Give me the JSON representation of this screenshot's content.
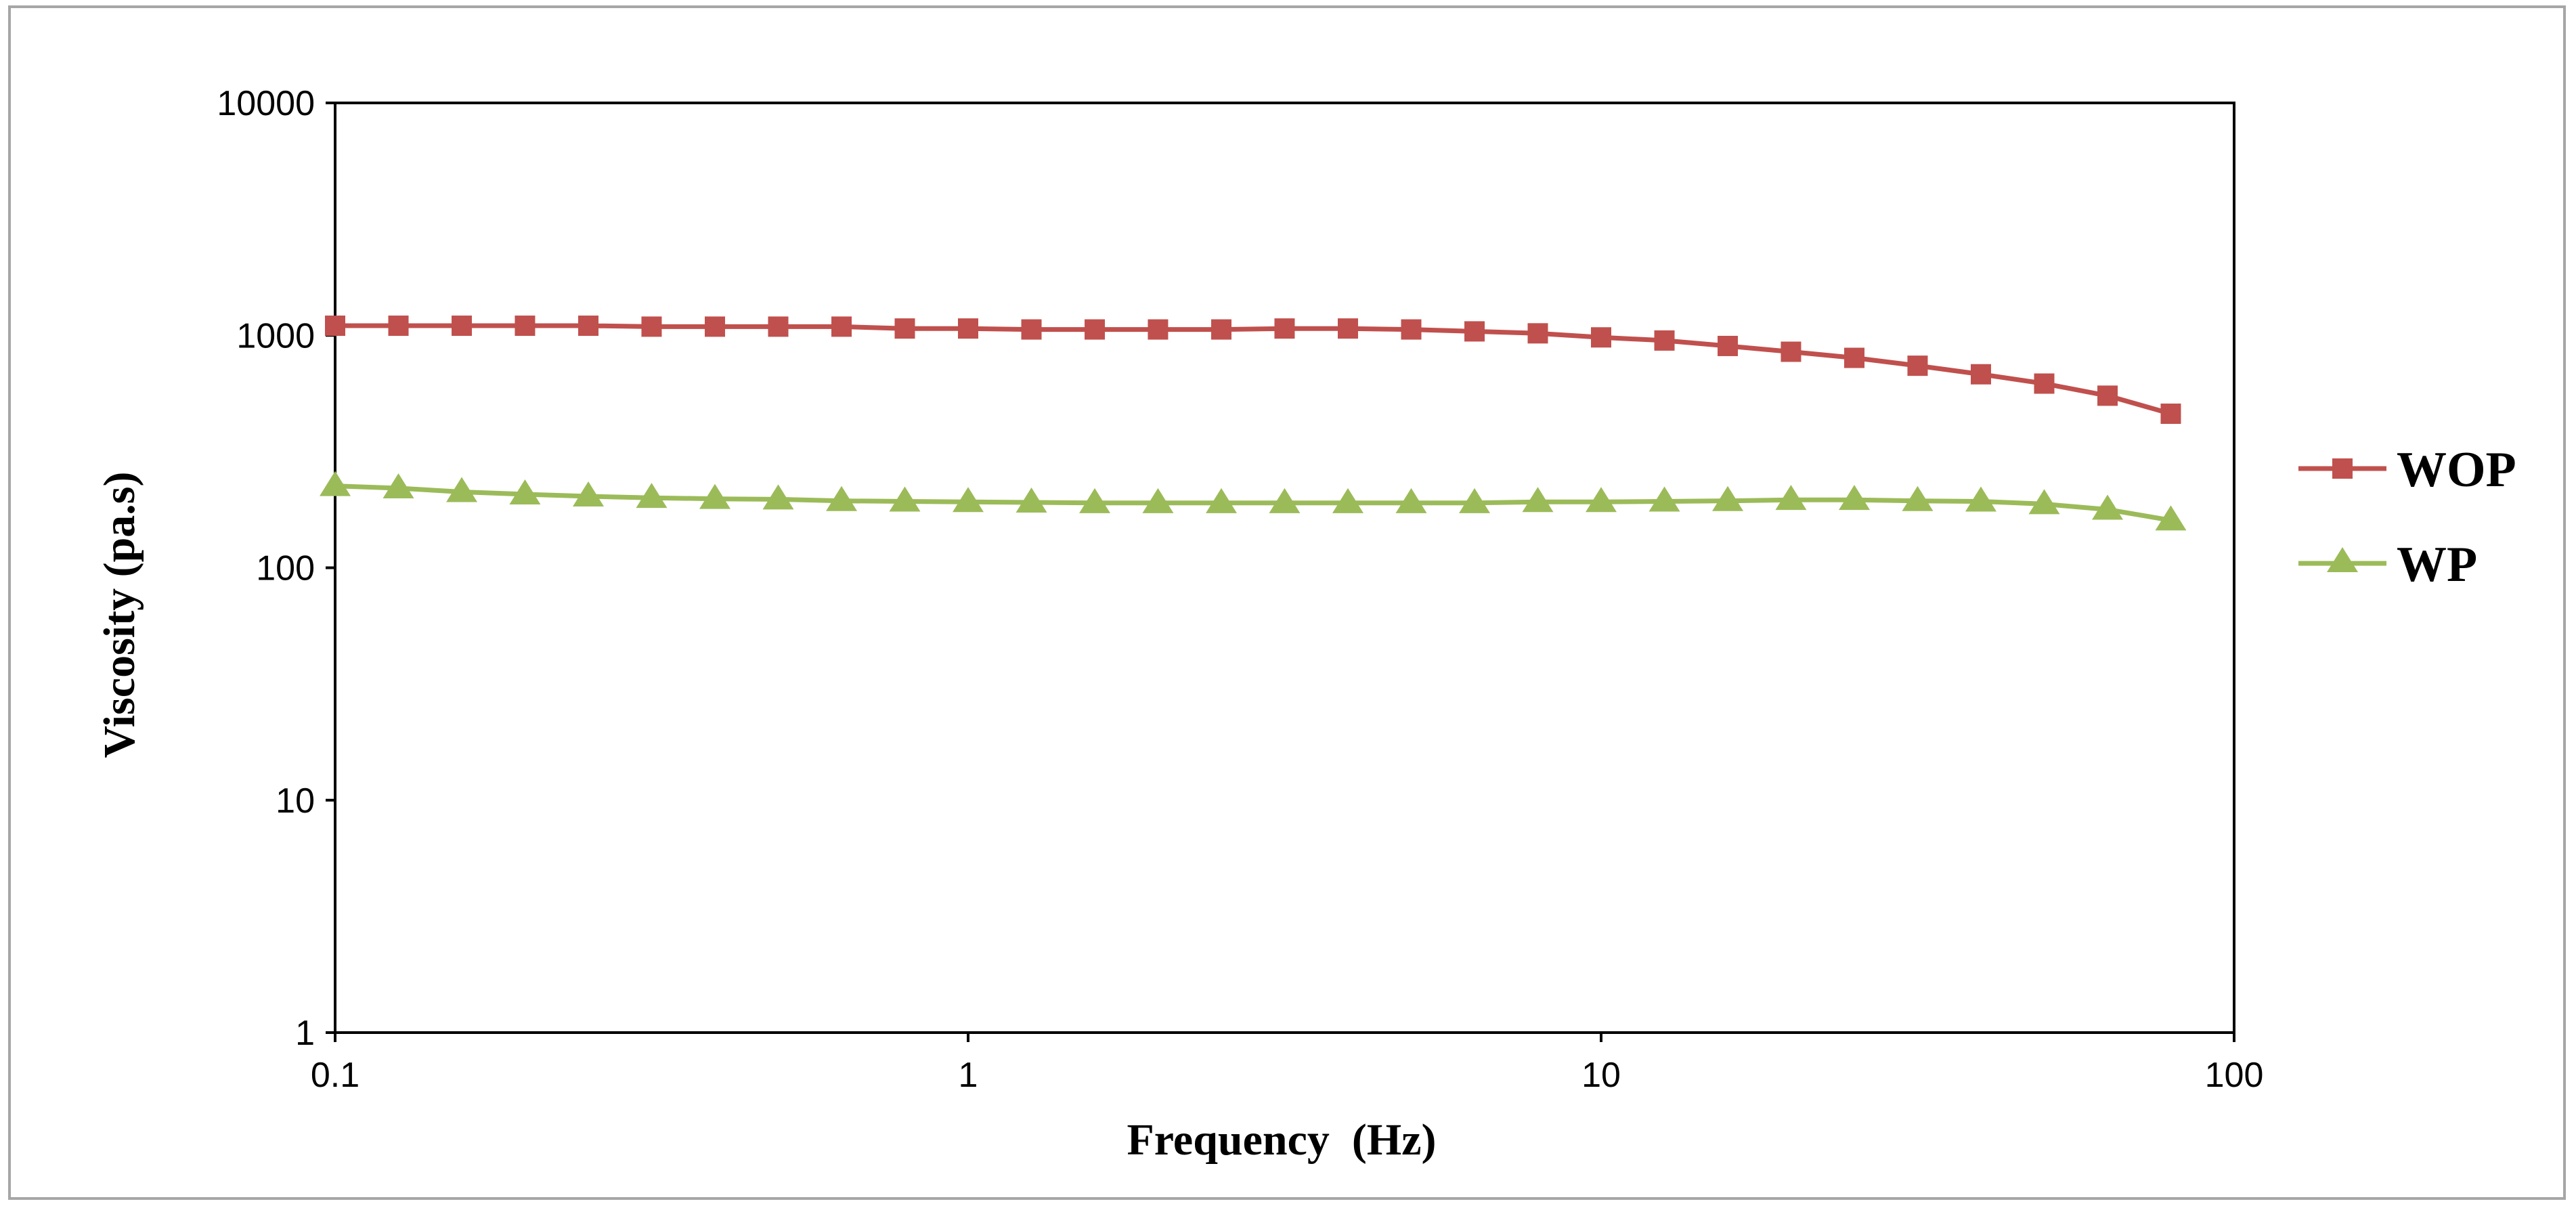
{
  "chart_data": {
    "type": "line",
    "title": "",
    "xlabel": "Frequency  (Hz)",
    "ylabel": "Viscosity (pa.s)",
    "xscale": "log",
    "yscale": "log",
    "xlim": [
      0.1,
      100
    ],
    "ylim": [
      1,
      10000
    ],
    "xticks": [
      "0.1",
      "1",
      "10",
      "100"
    ],
    "yticks": [
      "1",
      "10",
      "100",
      "1000",
      "10000"
    ],
    "grid": false,
    "legend_position": "right",
    "x": [
      0.1,
      0.1259,
      0.1585,
      0.1995,
      0.2512,
      0.3162,
      0.3981,
      0.5012,
      0.631,
      0.7943,
      1,
      1.259,
      1.585,
      1.995,
      2.512,
      3.162,
      3.981,
      5.012,
      6.31,
      7.943,
      10,
      12.59,
      15.85,
      19.95,
      25.12,
      31.62,
      39.81,
      50.12,
      63.1,
      79.43
    ],
    "series": [
      {
        "name": "WOP",
        "color": "#c0504d",
        "marker": "square",
        "values": [
          1100,
          1100,
          1100,
          1100,
          1100,
          1090,
          1090,
          1090,
          1090,
          1070,
          1070,
          1060,
          1060,
          1060,
          1060,
          1070,
          1070,
          1060,
          1040,
          1020,
          980,
          950,
          900,
          850,
          800,
          740,
          680,
          620,
          550,
          460
        ]
      },
      {
        "name": "WP",
        "color": "#9bbb59",
        "marker": "triangle",
        "values": [
          225,
          220,
          212,
          207,
          203,
          200,
          198,
          197,
          194,
          193,
          192,
          191,
          190,
          190,
          190,
          190,
          190,
          190,
          190,
          192,
          192,
          193,
          194,
          196,
          196,
          194,
          193,
          188,
          178,
          160
        ]
      }
    ]
  }
}
